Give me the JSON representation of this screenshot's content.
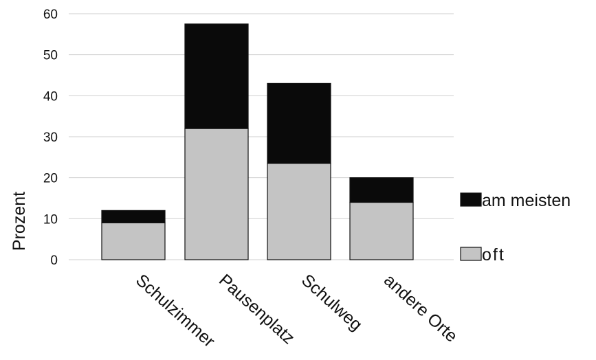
{
  "chart_data": {
    "type": "bar",
    "stacked": true,
    "categories": [
      "Schulzimmer",
      "Pausenplatz",
      "Schulweg",
      "andere Orte"
    ],
    "series": [
      {
        "name": "oft",
        "values": [
          9,
          32,
          23.5,
          14
        ],
        "color": "#c4c4c4"
      },
      {
        "name": "am meisten",
        "values": [
          3,
          25.5,
          19.5,
          6
        ],
        "color": "#0a0a0a"
      }
    ],
    "title": "",
    "xlabel": "",
    "ylabel": "Prozent",
    "ylim": [
      0,
      60
    ],
    "yticks": [
      0,
      10,
      20,
      30,
      40,
      50,
      60
    ],
    "grid": true,
    "legend_position": "right",
    "legend_order": [
      "am meisten",
      "oft"
    ]
  }
}
